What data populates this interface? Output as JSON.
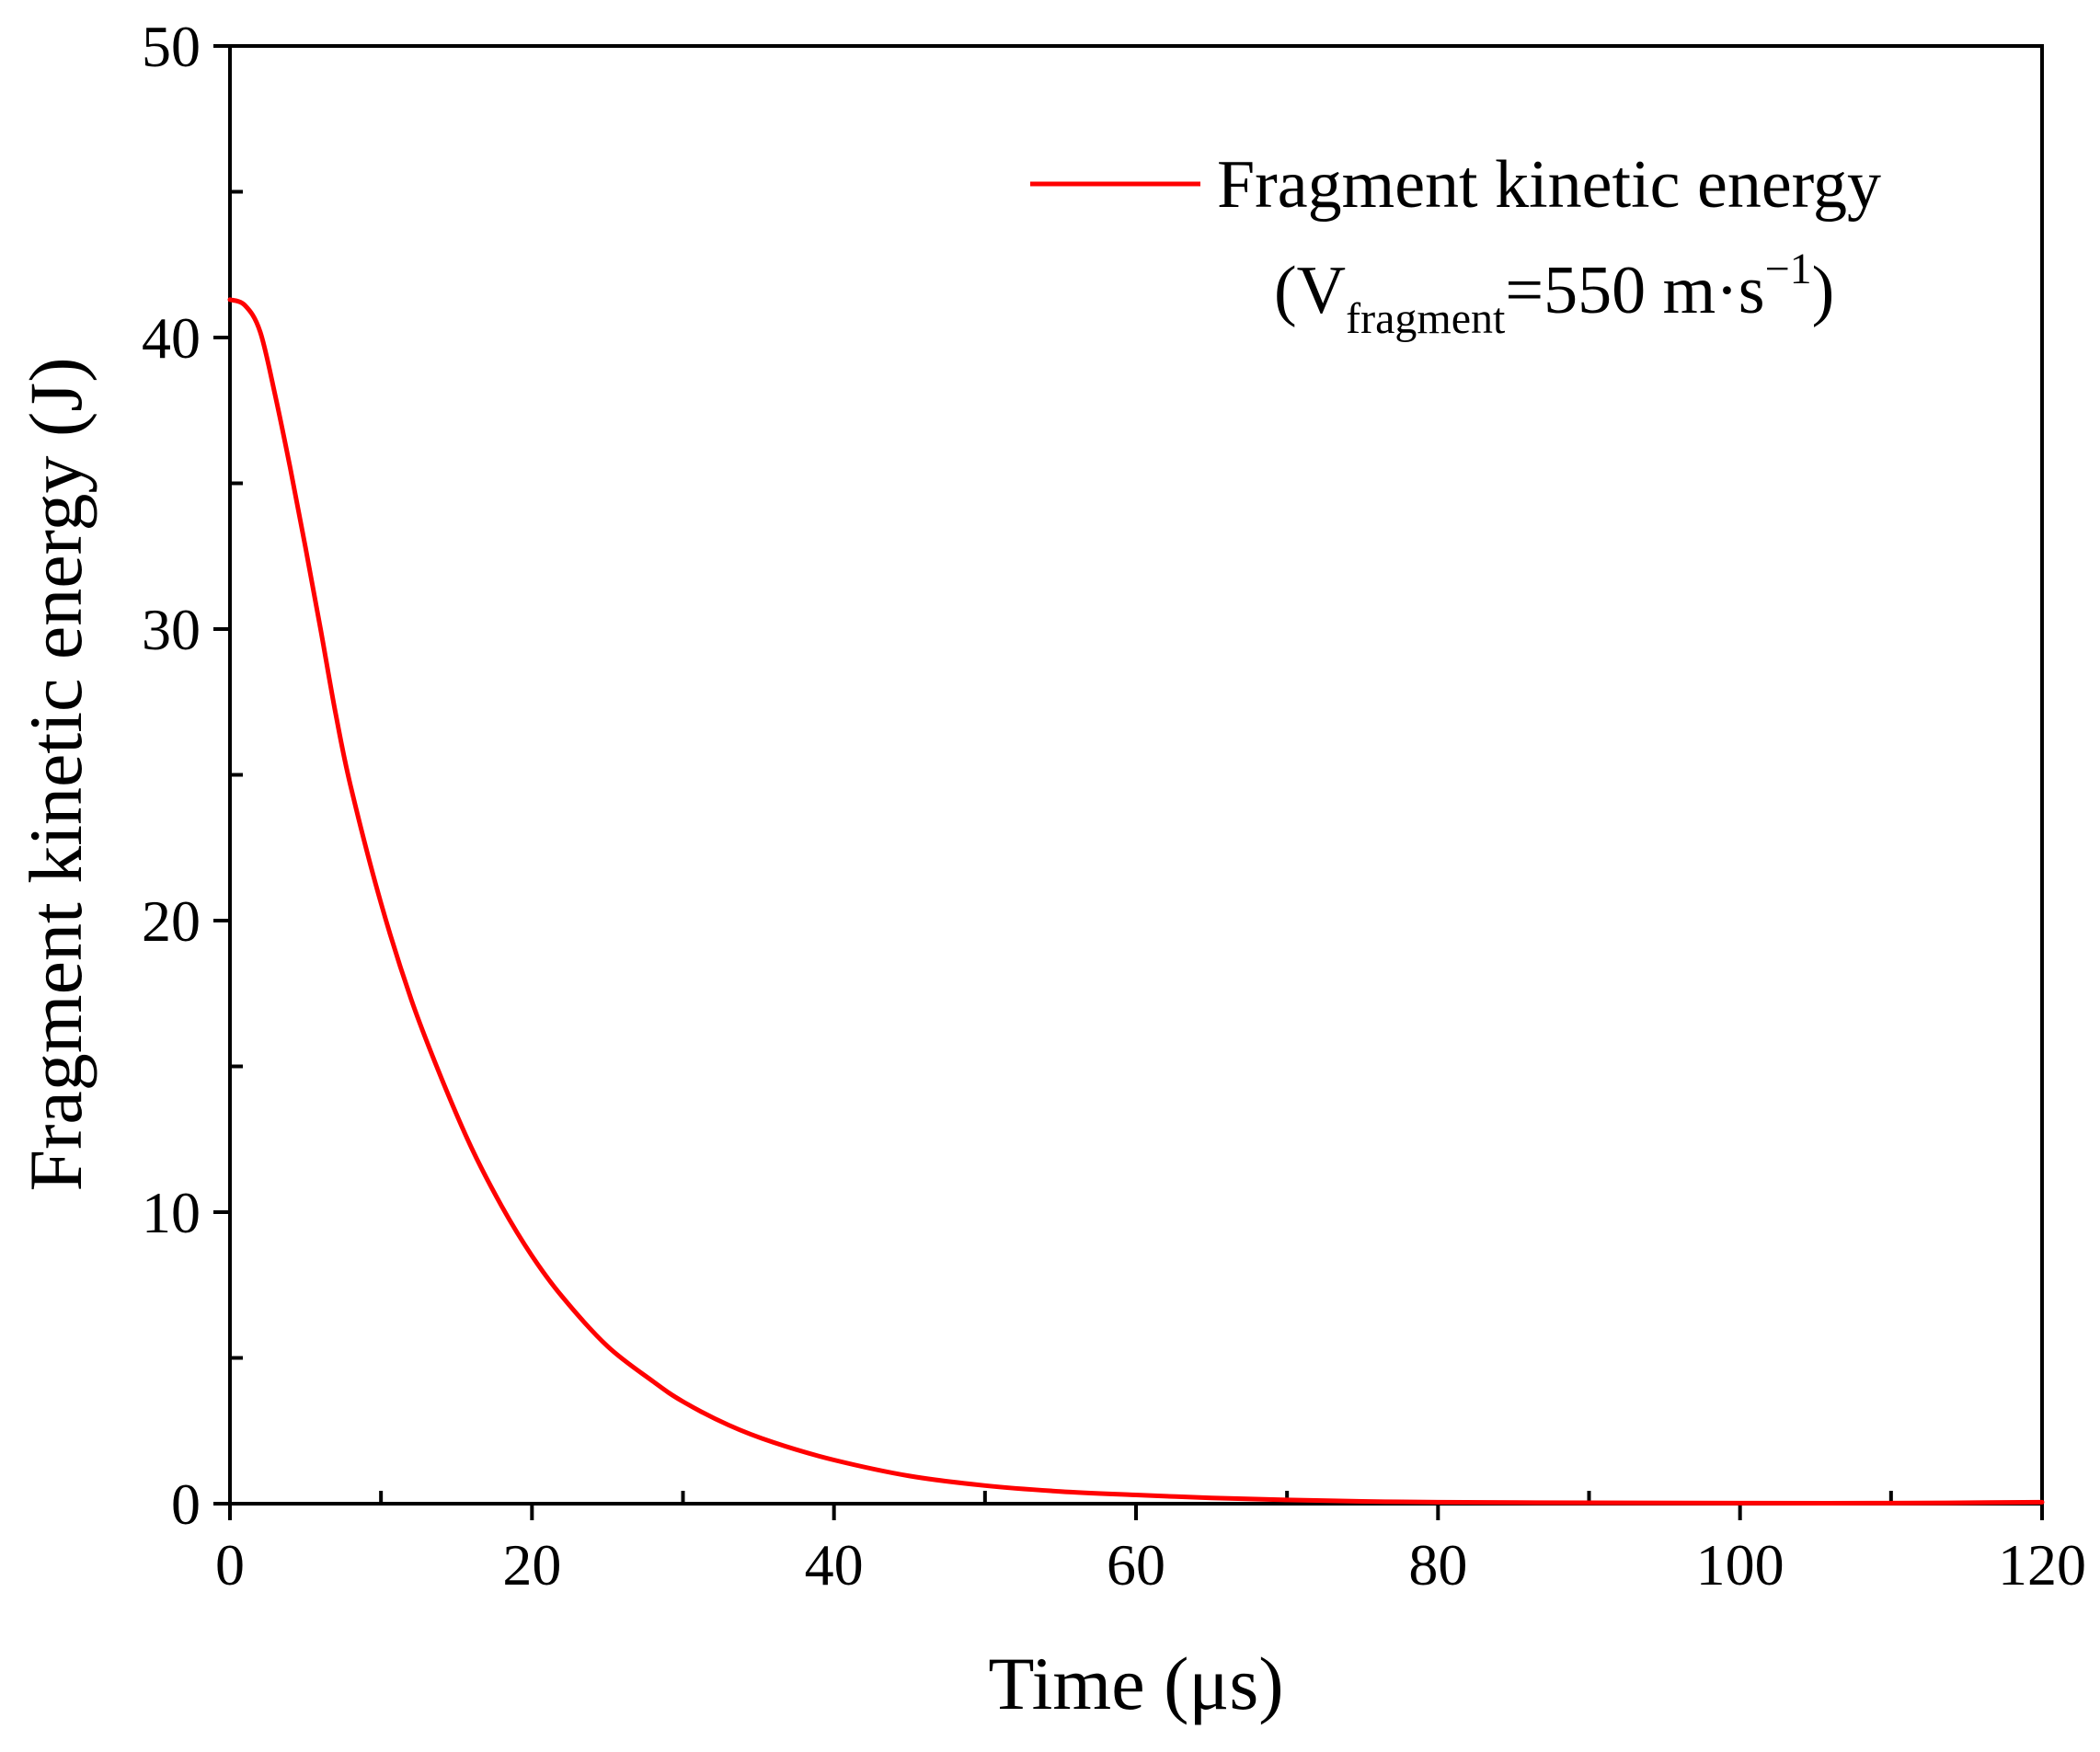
{
  "chart_data": {
    "type": "line",
    "title": "",
    "xlabel": "Time (μs)",
    "ylabel": "Fragment kinetic energy (J)",
    "xlim": [
      0,
      120
    ],
    "ylim": [
      0,
      50
    ],
    "x_ticks": [
      0,
      20,
      40,
      60,
      80,
      100,
      120
    ],
    "y_ticks": [
      0,
      10,
      20,
      30,
      40,
      50
    ],
    "x_minor_step": 10,
    "y_minor_step": 5,
    "grid": false,
    "legend_position": "top-right",
    "legend": {
      "label_line1": "Fragment kinetic energy",
      "label_line2_prefix": "(V",
      "label_line2_subscript": "fragment",
      "label_line2_mid": "=550 m·s",
      "label_line2_superscript": "−1",
      "label_line2_suffix": ")"
    },
    "series": [
      {
        "name": "Fragment kinetic energy (Vfragment=550 m·s−1)",
        "color": "#ff0000",
        "x": [
          0,
          1,
          2,
          3,
          4,
          5,
          6,
          7,
          8,
          10,
          12,
          14,
          16,
          18,
          20,
          22,
          25,
          28,
          30,
          33,
          36,
          40,
          45,
          50,
          55,
          60,
          65,
          70,
          75,
          80,
          90,
          100,
          110,
          120
        ],
        "y": [
          41.3,
          41.1,
          40.2,
          38.0,
          35.5,
          32.8,
          30.0,
          27.1,
          24.6,
          20.6,
          17.3,
          14.6,
          12.2,
          10.2,
          8.5,
          7.1,
          5.4,
          4.2,
          3.5,
          2.7,
          2.1,
          1.5,
          0.95,
          0.62,
          0.42,
          0.3,
          0.2,
          0.13,
          0.08,
          0.05,
          0.03,
          0.02,
          0.02,
          0.05
        ]
      }
    ]
  }
}
